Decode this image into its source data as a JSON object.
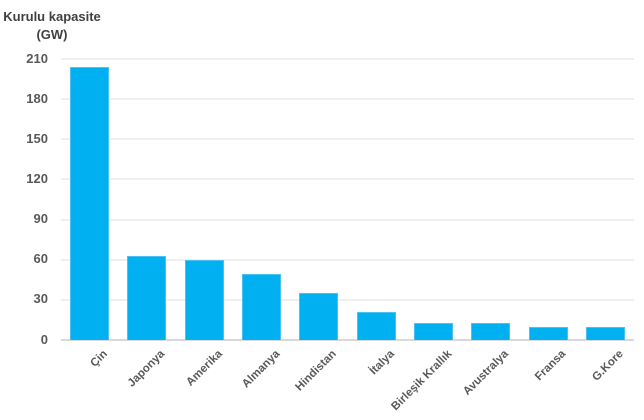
{
  "axis_title": {
    "line1": "Kurulu kapasite",
    "line2": "(GW)"
  },
  "chart_data": {
    "type": "bar",
    "title": "Kurulu kapasite (GW)",
    "xlabel": "",
    "ylabel": "Kurulu kapasite (GW)",
    "categories": [
      "Çin",
      "Japonya",
      "Amerika",
      "Almanya",
      "Hindistan",
      "İtalya",
      "Birleşik Krallık",
      "Avustralya",
      "Fransa",
      "G.Kore"
    ],
    "values": [
      204,
      63,
      60,
      49,
      35,
      21,
      13,
      13,
      10,
      10
    ],
    "ylim": [
      0,
      210
    ],
    "yticks": [
      0,
      30,
      60,
      90,
      120,
      150,
      180,
      210
    ],
    "grid": true,
    "legend": false,
    "x_label_rotation_deg": 45,
    "colors": {
      "bar": "#00b0f0",
      "bar_border": "#49c2f1",
      "gridline": "#efefef",
      "axis_line": "#d9d9d9",
      "axis_text": "#595959",
      "title_text": "#404040",
      "background": "#ffffff"
    }
  }
}
